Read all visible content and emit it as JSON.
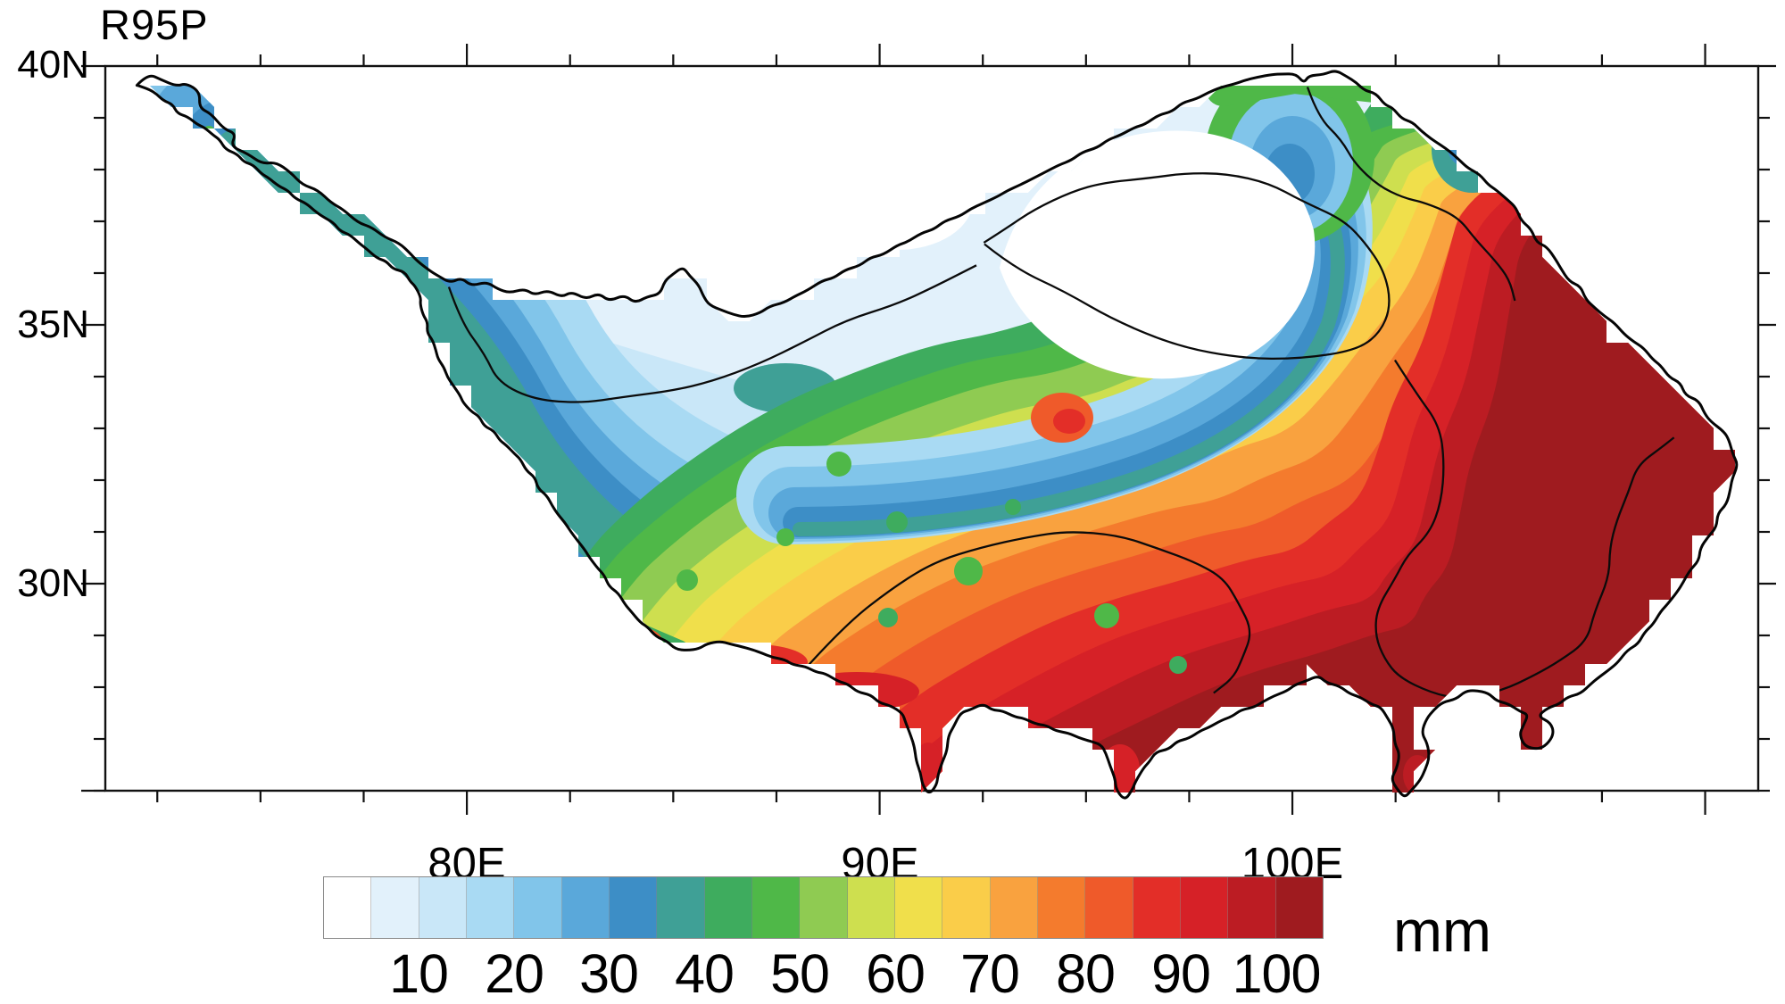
{
  "title": "R95P",
  "unit_label": "mm",
  "axes": {
    "lat_labels": [
      "40N",
      "35N",
      "30N"
    ],
    "lon_labels": [
      "80E",
      "90E",
      "100E"
    ]
  },
  "colorbar": {
    "labels": [
      "10",
      "20",
      "30",
      "40",
      "50",
      "60",
      "70",
      "80",
      "90",
      "100"
    ],
    "palette": [
      "#FFFFFF",
      "#E2F1FB",
      "#C9E7F8",
      "#A9DAF3",
      "#81C5EA",
      "#5AA8DA",
      "#3D8EC6",
      "#3FA096",
      "#3EAC5E",
      "#4FB848",
      "#8FCB52",
      "#CEDF4F",
      "#F0DF4B",
      "#FACD49",
      "#F9A23F",
      "#F47B2D",
      "#EF5A2A",
      "#E32E28",
      "#D62127",
      "#BC1C23",
      "#9F1B1F"
    ],
    "cell_width_mm": 5
  },
  "chart_data": {
    "type": "heatmap",
    "title": "R95P",
    "units": "mm",
    "legend_position": "bottom",
    "grid": "off",
    "x_tick_labels": [
      "80E",
      "90E",
      "100E"
    ],
    "y_tick_labels": [
      "40N",
      "35N",
      "30N"
    ],
    "approx_extent": {
      "lon": "71E to 111E",
      "lat": "26N to 40N"
    },
    "contour_levels": [
      5,
      10,
      15,
      20,
      25,
      30,
      35,
      40,
      45,
      50,
      55,
      60,
      65,
      70,
      75,
      80,
      85,
      90,
      95,
      100
    ],
    "palette": [
      "#FFFFFF",
      "#E2F1FB",
      "#C9E7F8",
      "#A9DAF3",
      "#81C5EA",
      "#5AA8DA",
      "#3D8EC6",
      "#3FA096",
      "#3EAC5E",
      "#4FB848",
      "#8FCB52",
      "#CEDF4F",
      "#F0DF4B",
      "#FACD49",
      "#F9A23F",
      "#F47B2D",
      "#EF5A2A",
      "#E32E28",
      "#D62127",
      "#BC1C23",
      "#9F1B1F"
    ],
    "region_values_mm": {
      "northwest_arm": "15-30",
      "west_interior": "10-20",
      "north_central_basin_qaidam": "0-10",
      "central_diagonal_band": "20-40",
      "central_transition": "40-60",
      "center_south_mosaic": "55-80",
      "south_margin": "70-100+",
      "northeast_corner": "60->100",
      "east_and_southeast": ">100",
      "qilian_patch_northeast": "20-35"
    },
    "pattern_summary": "R95P (very wet day precipitation) over the Tibetan Plateau increases from <10 mm in the northwest and the white Qaidam basin in the north-center to >100 mm (dark red) across the eastern and southeastern plateau; a blue 20-40 mm band runs diagonally SW-NE through the middle, followed by green, yellow and orange bands toward the southeast."
  }
}
